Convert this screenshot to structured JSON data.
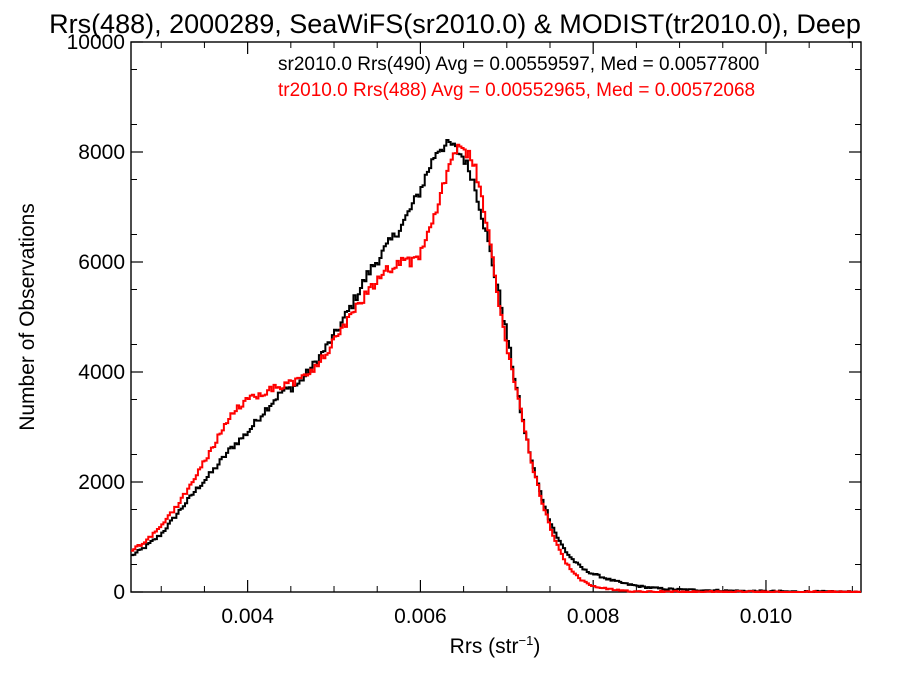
{
  "chart_data": {
    "type": "line",
    "title": "Rrs(488), 2000289, SeaWiFS(sr2010.0) & MODIST(tr2010.0), Deep",
    "xlabel": "Rrs (str",
    "xlabel_sup": "−1",
    "xlabel_tail": ")",
    "ylabel": "Number of Observations",
    "xlim": [
      0.00265,
      0.0111
    ],
    "ylim": [
      0,
      10000
    ],
    "xticks": [
      0.004,
      0.006,
      0.008,
      0.01
    ],
    "xtick_labels": [
      "0.004",
      "0.006",
      "0.008",
      "0.010"
    ],
    "yticks": [
      0,
      2000,
      4000,
      6000,
      8000,
      10000
    ],
    "ytick_labels": [
      "0",
      "2000",
      "4000",
      "6000",
      "8000",
      "10000"
    ],
    "grid": false,
    "legend_position": "top-right",
    "series": [
      {
        "name": "sr2010.0 Rrs(490) Avg = 0.00559597, Med = 0.00577800",
        "color": "#000000",
        "points": [
          [
            0.00265,
            650
          ],
          [
            0.0028,
            800
          ],
          [
            0.003,
            1050
          ],
          [
            0.0032,
            1450
          ],
          [
            0.0034,
            1850
          ],
          [
            0.0036,
            2200
          ],
          [
            0.0038,
            2600
          ],
          [
            0.004,
            2900
          ],
          [
            0.0042,
            3300
          ],
          [
            0.0044,
            3650
          ],
          [
            0.0045,
            3700
          ],
          [
            0.0046,
            3800
          ],
          [
            0.0048,
            4200
          ],
          [
            0.005,
            4650
          ],
          [
            0.0052,
            5200
          ],
          [
            0.0054,
            5800
          ],
          [
            0.0056,
            6250
          ],
          [
            0.0058,
            6700
          ],
          [
            0.006,
            7300
          ],
          [
            0.0061,
            7700
          ],
          [
            0.0062,
            8050
          ],
          [
            0.00635,
            8150
          ],
          [
            0.0065,
            7900
          ],
          [
            0.0066,
            7550
          ],
          [
            0.0067,
            6950
          ],
          [
            0.0068,
            6250
          ],
          [
            0.0069,
            5500
          ],
          [
            0.007,
            4700
          ],
          [
            0.0071,
            3800
          ],
          [
            0.0072,
            3000
          ],
          [
            0.0073,
            2300
          ],
          [
            0.0074,
            1750
          ],
          [
            0.0075,
            1300
          ],
          [
            0.0076,
            950
          ],
          [
            0.0077,
            700
          ],
          [
            0.0078,
            530
          ],
          [
            0.0079,
            400
          ],
          [
            0.008,
            330
          ],
          [
            0.0082,
            220
          ],
          [
            0.0084,
            140
          ],
          [
            0.0086,
            90
          ],
          [
            0.0088,
            60
          ],
          [
            0.009,
            45
          ],
          [
            0.0095,
            25
          ],
          [
            0.01,
            12
          ],
          [
            0.0105,
            6
          ],
          [
            0.0111,
            3
          ]
        ]
      },
      {
        "name": "tr2010.0 Rrs(488) Avg = 0.00552965, Med = 0.00572068",
        "color": "#ff0000",
        "points": [
          [
            0.00265,
            750
          ],
          [
            0.0028,
            900
          ],
          [
            0.003,
            1200
          ],
          [
            0.0032,
            1600
          ],
          [
            0.0034,
            2100
          ],
          [
            0.0036,
            2650
          ],
          [
            0.0038,
            3200
          ],
          [
            0.004,
            3500
          ],
          [
            0.0042,
            3650
          ],
          [
            0.0044,
            3750
          ],
          [
            0.0046,
            3850
          ],
          [
            0.0048,
            4100
          ],
          [
            0.005,
            4550
          ],
          [
            0.0052,
            5000
          ],
          [
            0.0054,
            5500
          ],
          [
            0.0056,
            5850
          ],
          [
            0.0058,
            6050
          ],
          [
            0.0059,
            6000
          ],
          [
            0.006,
            6150
          ],
          [
            0.0061,
            6500
          ],
          [
            0.0062,
            7000
          ],
          [
            0.0063,
            7600
          ],
          [
            0.0064,
            8050
          ],
          [
            0.0065,
            8000
          ],
          [
            0.0066,
            7900
          ],
          [
            0.0067,
            7300
          ],
          [
            0.0068,
            6400
          ],
          [
            0.0069,
            5300
          ],
          [
            0.007,
            4500
          ],
          [
            0.0071,
            3800
          ],
          [
            0.0072,
            3000
          ],
          [
            0.0073,
            2300
          ],
          [
            0.0074,
            1700
          ],
          [
            0.0075,
            1200
          ],
          [
            0.0076,
            800
          ],
          [
            0.0077,
            500
          ],
          [
            0.0078,
            300
          ],
          [
            0.0079,
            180
          ],
          [
            0.008,
            100
          ],
          [
            0.0082,
            45
          ],
          [
            0.0084,
            20
          ],
          [
            0.0086,
            10
          ],
          [
            0.009,
            5
          ],
          [
            0.01,
            2
          ],
          [
            0.0111,
            0
          ]
        ]
      }
    ]
  }
}
